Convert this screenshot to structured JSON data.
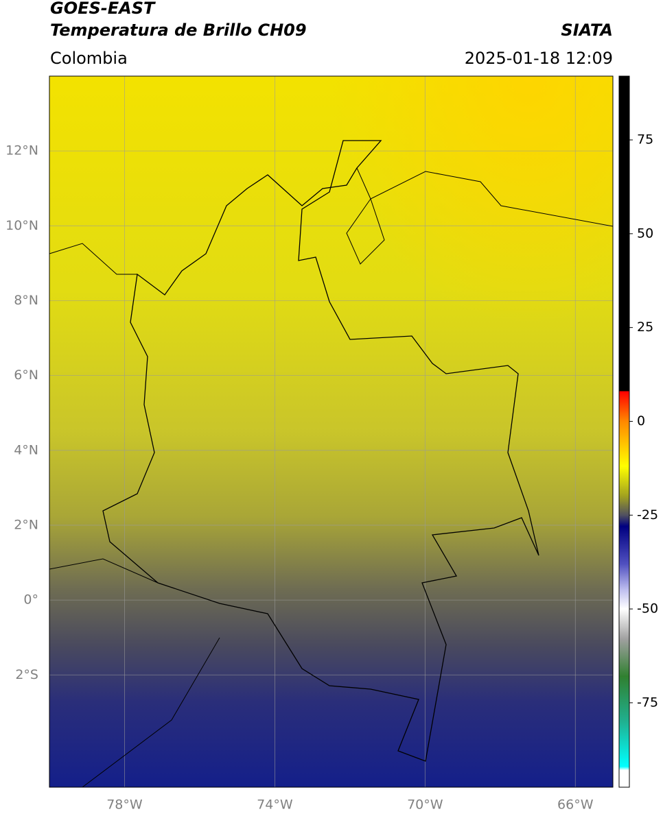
{
  "header": {
    "source": "GOES-EAST",
    "title": "Temperatura de Brillo CH09",
    "org": "SIATA",
    "region": "Colombia",
    "datetime": "2025-01-18 12:09"
  },
  "map": {
    "xlim": [
      -80,
      -65
    ],
    "ylim": [
      -5,
      14
    ],
    "grid": true,
    "xticks": [
      {
        "value": -78,
        "label": "78°W"
      },
      {
        "value": -74,
        "label": "74°W"
      },
      {
        "value": -70,
        "label": "70°W"
      },
      {
        "value": -66,
        "label": "66°W"
      }
    ],
    "yticks": [
      {
        "value": 12,
        "label": "12°N"
      },
      {
        "value": 10,
        "label": "10°N"
      },
      {
        "value": 8,
        "label": "8°N"
      },
      {
        "value": 6,
        "label": "6°N"
      },
      {
        "value": 4,
        "label": "4°N"
      },
      {
        "value": 2,
        "label": "2°N"
      },
      {
        "value": 0,
        "label": "0°"
      },
      {
        "value": -2,
        "label": "2°S"
      }
    ]
  },
  "colorbar": {
    "lim": [
      -97.5,
      92
    ],
    "ticks": [
      75,
      50,
      25,
      0,
      -25,
      -50,
      -75
    ],
    "stops": [
      {
        "value": 92,
        "color": "#000000"
      },
      {
        "value": 8,
        "color": "#000000"
      },
      {
        "value": 8,
        "color": "#ff0000"
      },
      {
        "value": 0,
        "color": "#ff8800"
      },
      {
        "value": -12,
        "color": "#ffff00"
      },
      {
        "value": -20,
        "color": "#a0a020"
      },
      {
        "value": -25,
        "color": "#505060"
      },
      {
        "value": -28,
        "color": "#000080"
      },
      {
        "value": -38,
        "color": "#5050c0"
      },
      {
        "value": -45,
        "color": "#c0c0f0"
      },
      {
        "value": -50,
        "color": "#ffffff"
      },
      {
        "value": -58,
        "color": "#a0a0a0"
      },
      {
        "value": -68,
        "color": "#308030"
      },
      {
        "value": -80,
        "color": "#20b090"
      },
      {
        "value": -92,
        "color": "#00ffff"
      },
      {
        "value": -93,
        "color": "#ffffff"
      },
      {
        "value": -97.5,
        "color": "#ffffff"
      }
    ]
  }
}
